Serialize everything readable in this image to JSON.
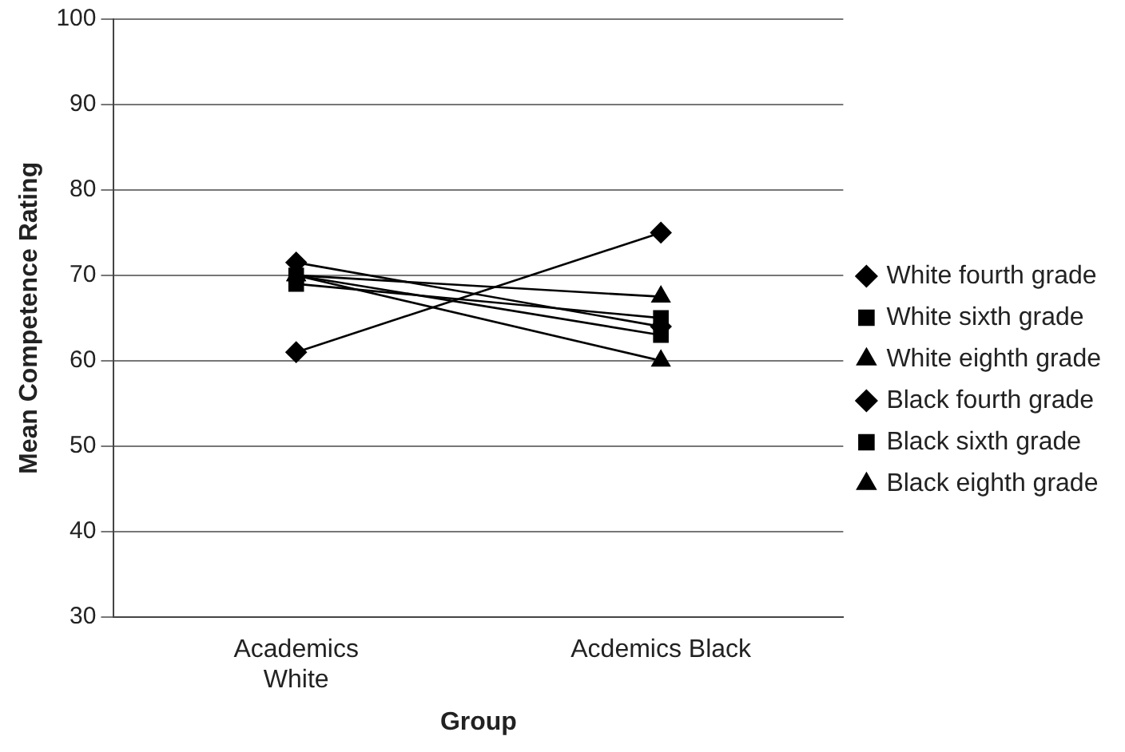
{
  "chart_data": {
    "type": "line",
    "xlabel": "Group",
    "ylabel": "Mean Competence Rating",
    "categories": [
      "Academics White",
      "Acdemics Black"
    ],
    "series": [
      {
        "name": "White fourth grade",
        "color": "#000000",
        "marker": "diamond",
        "values": [
          71.5,
          64
        ]
      },
      {
        "name": "White sixth grade",
        "color": "#000000",
        "marker": "square",
        "values": [
          70,
          63
        ]
      },
      {
        "name": "White eighth grade",
        "color": "#000000",
        "marker": "triangle",
        "values": [
          70,
          60
        ]
      },
      {
        "name": "Black fourth grade",
        "color": "#000000",
        "marker": "diamond",
        "values": [
          61,
          75
        ]
      },
      {
        "name": "Black sixth grade",
        "color": "#000000",
        "marker": "square",
        "values": [
          69,
          65
        ]
      },
      {
        "name": "Black eighth grade",
        "color": "#000000",
        "marker": "triangle",
        "values": [
          70,
          67.5
        ]
      }
    ],
    "ylim": [
      30,
      100
    ],
    "yticks": [
      30,
      40,
      50,
      60,
      70,
      80,
      90,
      100
    ],
    "grid": "y",
    "legend": "right",
    "line_style": "solid"
  }
}
